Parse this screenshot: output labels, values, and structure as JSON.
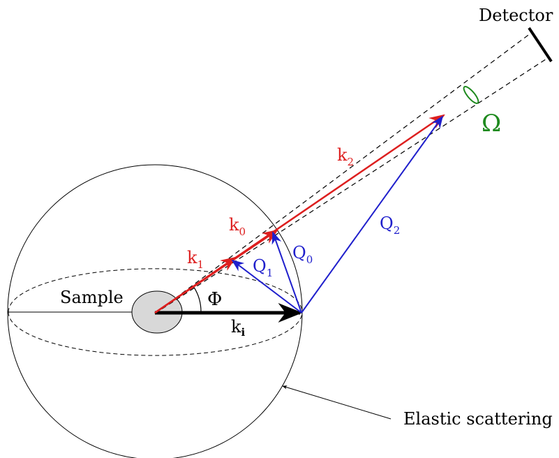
{
  "labels": {
    "detector": "Detector",
    "omega": "Ω",
    "sample": "Sample",
    "phi": "Φ",
    "elastic_scattering": "Elastic scattering",
    "k2": {
      "base": "k",
      "sub": "2"
    },
    "k0": {
      "base": "k",
      "sub": "0"
    },
    "k1": {
      "base": "k",
      "sub": "1"
    },
    "ki": {
      "base": "k",
      "sub": "i"
    },
    "q0": {
      "base": "Q",
      "sub": "0"
    },
    "q1": {
      "base": "Q",
      "sub": "1"
    },
    "q2": {
      "base": "Q",
      "sub": "2"
    }
  },
  "colors": {
    "k_vectors": "#dd1f1f",
    "q_vectors": "#1f1fcc",
    "incident": "#000000",
    "solid_angle": "#1e8a1e",
    "sample_fill": "#d8d8d8"
  }
}
